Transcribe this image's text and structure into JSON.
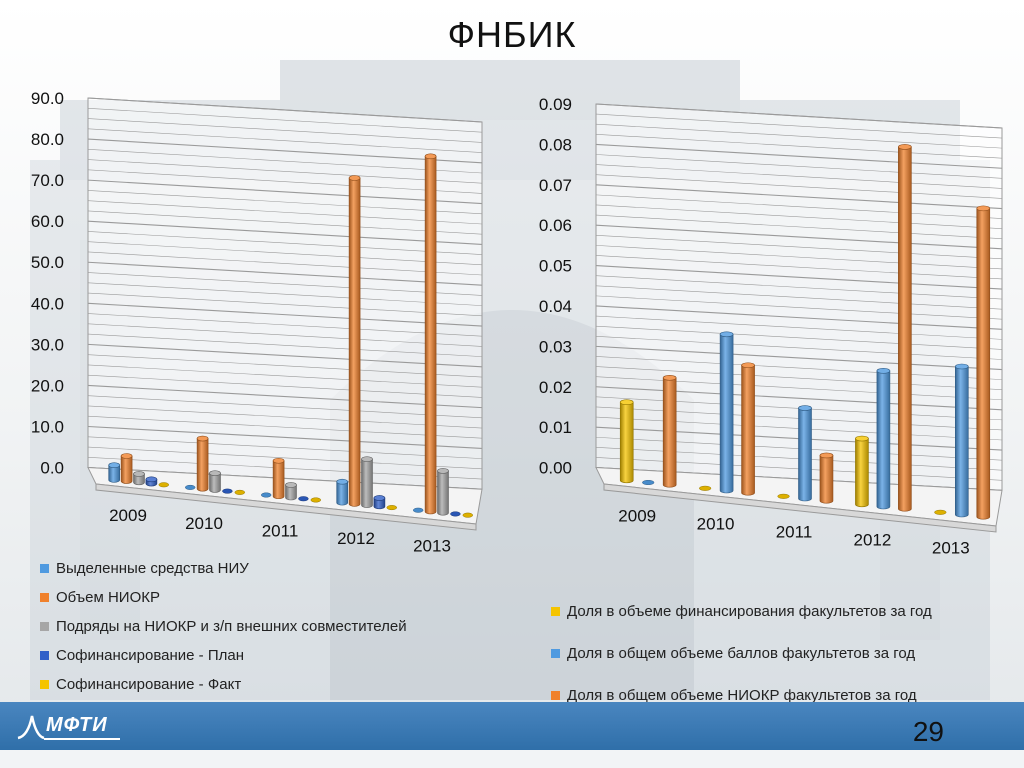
{
  "slide": {
    "title": "ФНБИК",
    "page_number": "29",
    "logo_text": "МФТИ"
  },
  "colors": {
    "blue_light": "#4f9ae0",
    "orange": "#f0812c",
    "gray": "#a6a6a6",
    "blue_dark": "#2f5fc8",
    "yellow": "#f5c400"
  },
  "chart_data": [
    {
      "type": "bar",
      "categories": [
        "2009",
        "2010",
        "2011",
        "2012",
        "2013"
      ],
      "ylim": [
        0,
        90
      ],
      "yticks": [
        "0.0",
        "10.0",
        "20.0",
        "30.0",
        "40.0",
        "50.0",
        "60.0",
        "70.0",
        "80.0",
        "90.0"
      ],
      "grid": true,
      "legend_position": "bottom",
      "series": [
        {
          "name": "Выделенные средства НИУ",
          "color": "#4f9ae0",
          "values": [
            3.5,
            0,
            0,
            5,
            0
          ]
        },
        {
          "name": "Объем НИОКР",
          "color": "#f0812c",
          "values": [
            6,
            12,
            8.5,
            78,
            85
          ]
        },
        {
          "name": "Подряды на НИОКР и з/п внешних совместителей",
          "color": "#a6a6a6",
          "values": [
            2,
            4,
            3,
            11,
            10
          ]
        },
        {
          "name": "Софинансирование - План",
          "color": "#2f5fc8",
          "values": [
            1,
            0,
            0,
            2,
            0
          ]
        },
        {
          "name": "Софинансирование - Факт",
          "color": "#f5c400",
          "values": [
            0,
            0,
            0,
            0,
            0
          ]
        }
      ]
    },
    {
      "type": "bar",
      "categories": [
        "2009",
        "2010",
        "2011",
        "2012",
        "2013"
      ],
      "ylim": [
        0,
        0.09
      ],
      "yticks": [
        "0.00",
        "0.01",
        "0.02",
        "0.03",
        "0.04",
        "0.05",
        "0.06",
        "0.07",
        "0.08",
        "0.09"
      ],
      "grid": true,
      "legend_position": "bottom",
      "series": [
        {
          "name": "Доля в объеме финансирования факультетов за год",
          "color": "#f5c400",
          "values": [
            0.019,
            0,
            0,
            0.016,
            0
          ]
        },
        {
          "name": "Доля в общем объеме баллов факультетов за год",
          "color": "#4f9ae0",
          "values": [
            0,
            0.038,
            0.022,
            0.033,
            0.036
          ]
        },
        {
          "name": "Доля в общем объеме НИОКР факультетов за год",
          "color": "#f0812c",
          "values": [
            0.026,
            0.031,
            0.011,
            0.088,
            0.075
          ]
        }
      ]
    }
  ]
}
